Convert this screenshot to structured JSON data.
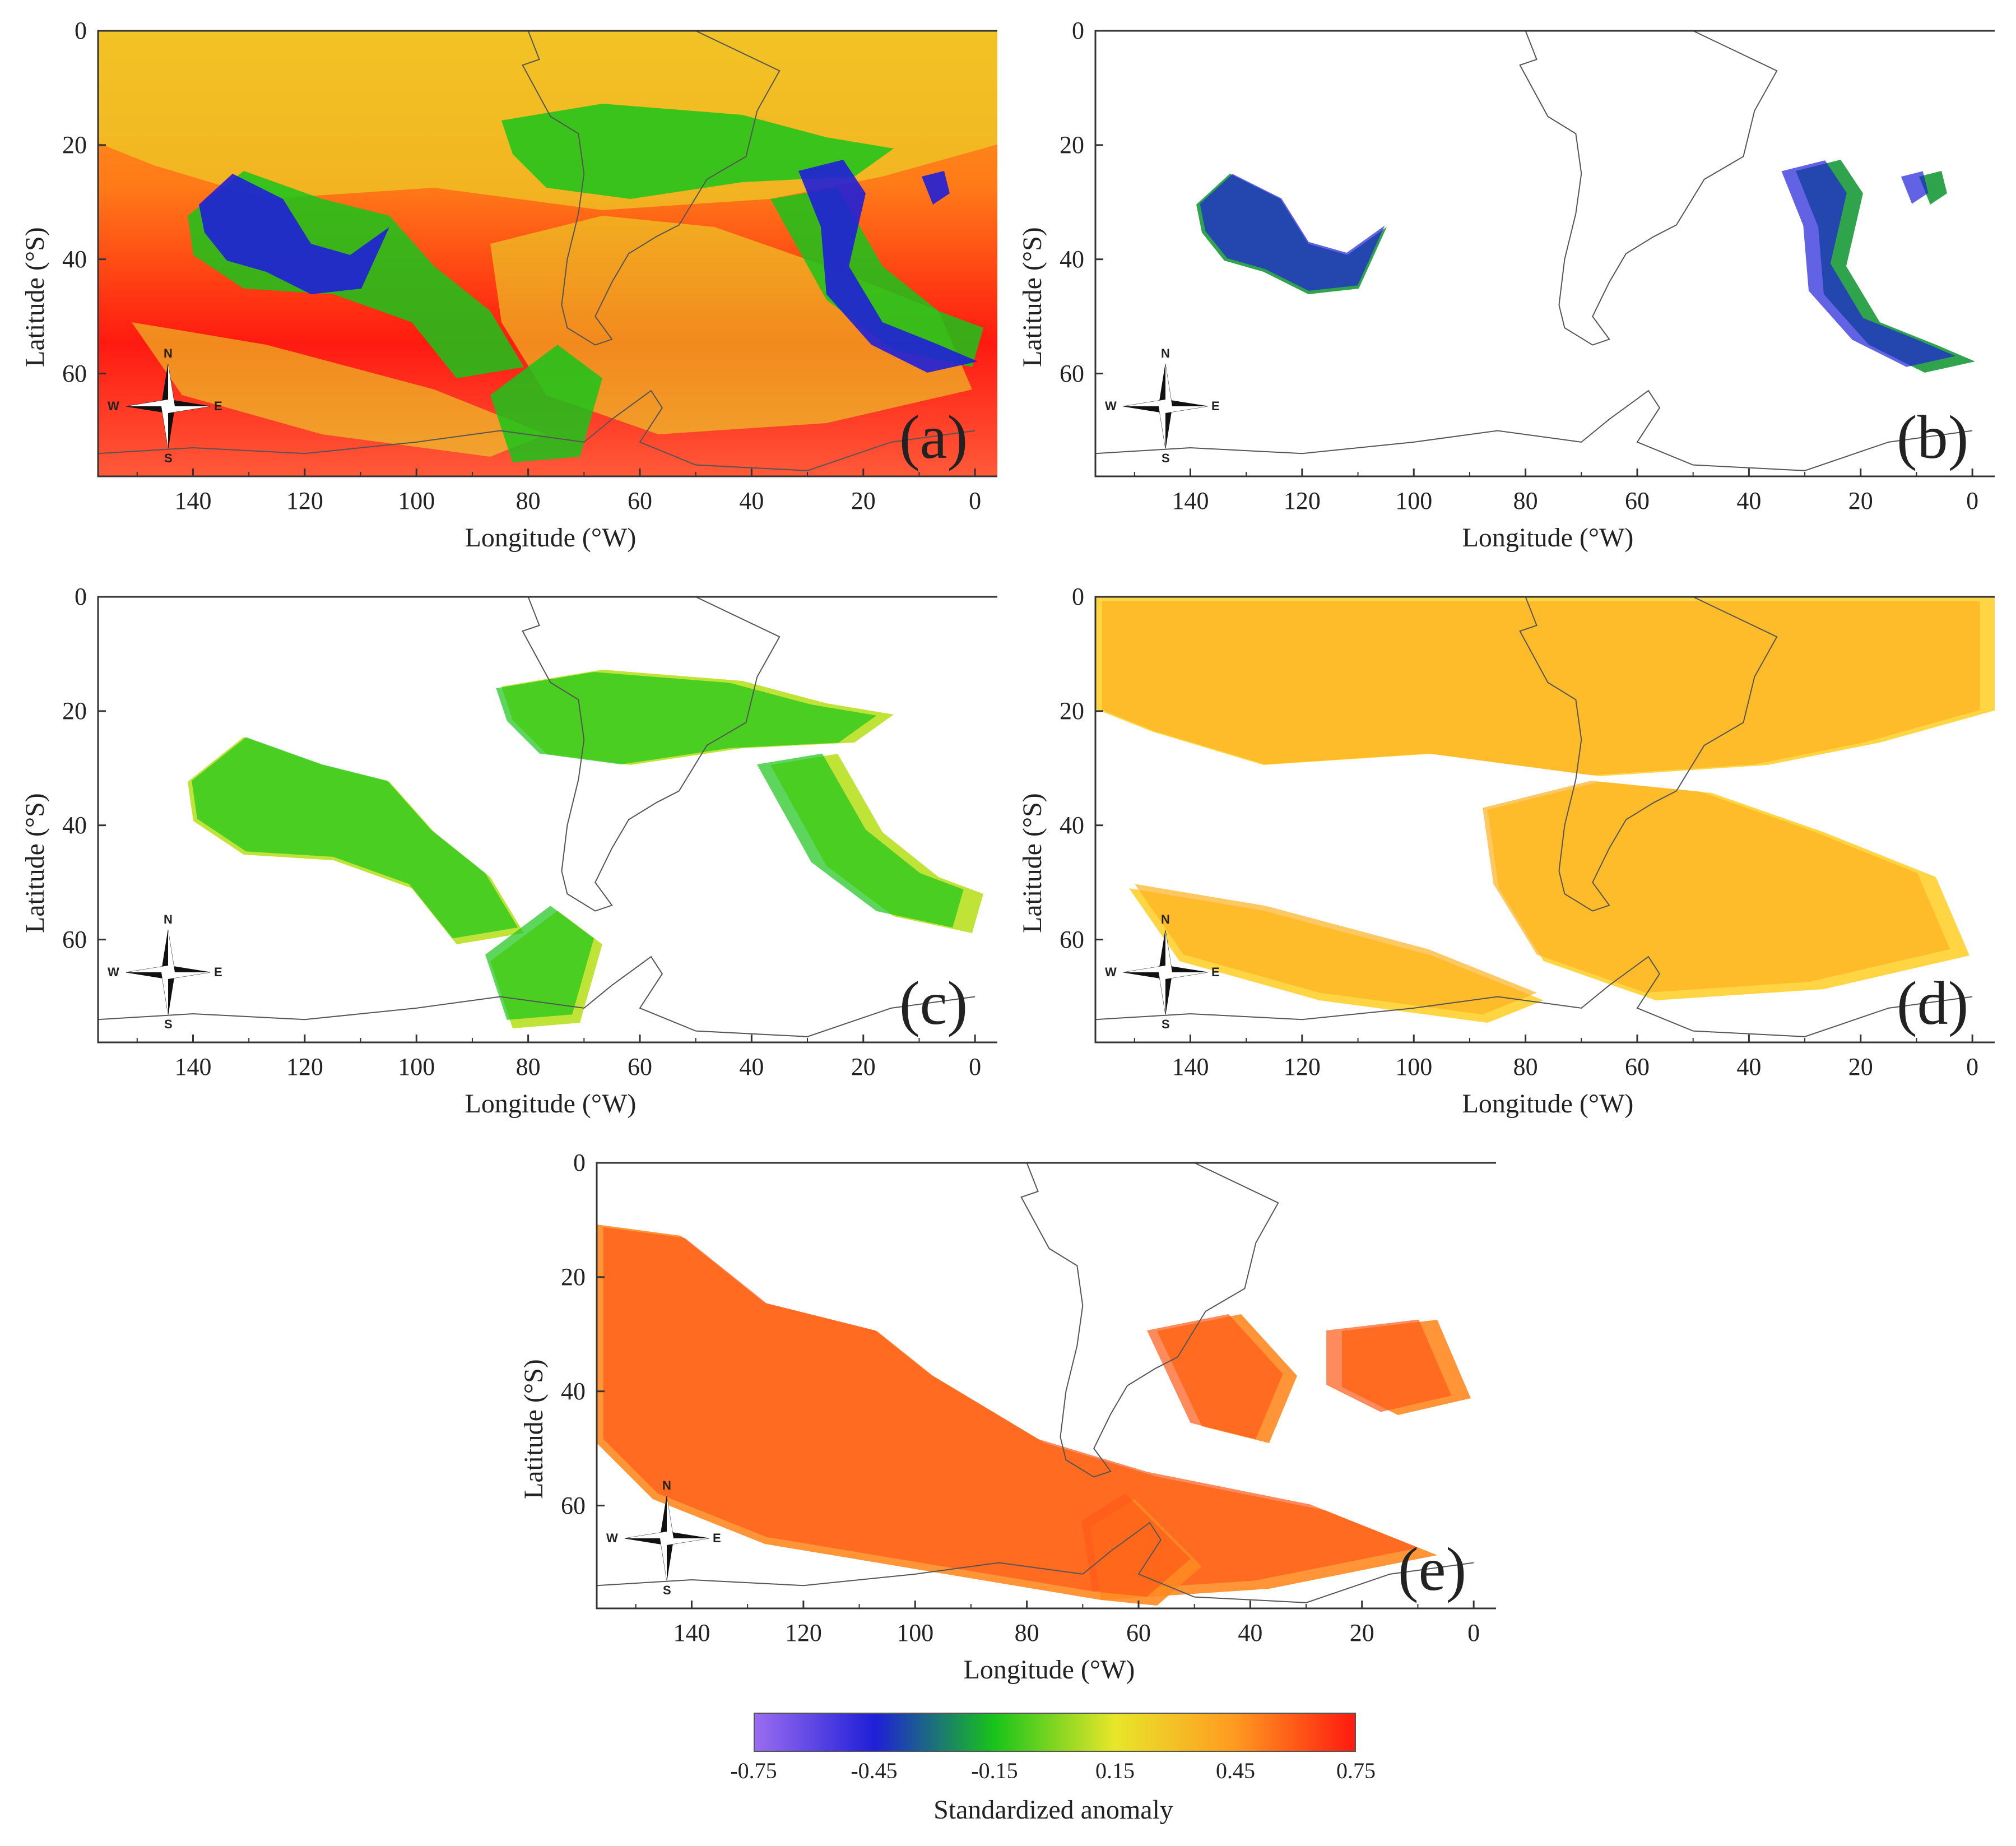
{
  "panels": [
    {
      "id": "a",
      "label": "(a)",
      "xlabel": "Longitude (°W)",
      "ylabel": "Latitude (°S)",
      "fill": "full"
    },
    {
      "id": "b",
      "label": "(b)",
      "xlabel": "Longitude (°W)",
      "ylabel": "Latitude (°S)",
      "fill": "blue"
    },
    {
      "id": "c",
      "label": "(c)",
      "xlabel": "Longitude (°W)",
      "ylabel": "Latitude (°S)",
      "fill": "green"
    },
    {
      "id": "d",
      "label": "(d)",
      "xlabel": "Longitude (°W)",
      "ylabel": "Latitude (°S)",
      "fill": "yellow"
    },
    {
      "id": "e",
      "label": "(e)",
      "xlabel": "Longitude (°W)",
      "ylabel": "Latitude (°S)",
      "fill": "red"
    }
  ],
  "axes": {
    "lat_ticks": [
      "0",
      "20",
      "40",
      "60"
    ],
    "lon_ticks": [
      "140",
      "120",
      "100",
      "80",
      "60",
      "40",
      "20",
      "0"
    ]
  },
  "compass": {
    "n": "N",
    "s": "S",
    "e": "E",
    "w": "W"
  },
  "colorbar": {
    "title": "Standardized anomaly",
    "ticks": [
      "-0.75",
      "-0.45",
      "-0.15",
      "0.15",
      "0.45",
      "0.75"
    ],
    "colors": [
      "#9a6cf0",
      "#1f1fd8",
      "#19c41a",
      "#e8e62a",
      "#ff9a20",
      "#ff1a10"
    ]
  }
}
